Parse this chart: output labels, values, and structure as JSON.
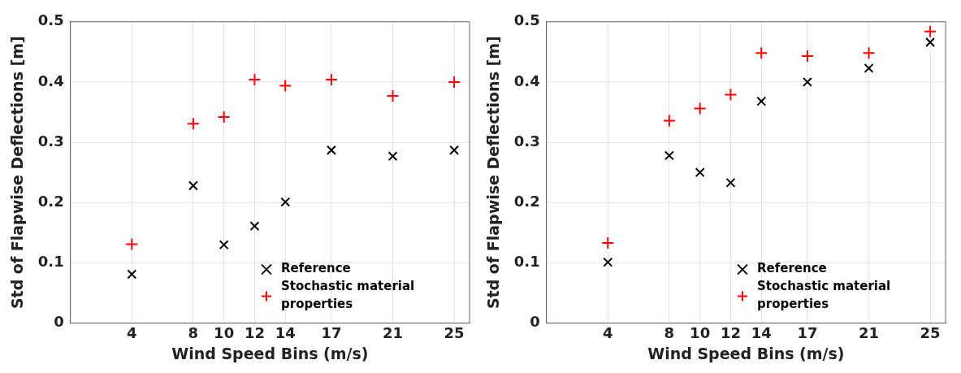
{
  "chart_data": [
    {
      "type": "scatter",
      "xlabel": "Wind Speed Bins (m/s)",
      "ylabel": "Std of Flapwise Deflections [m]",
      "xlim": [
        0,
        26
      ],
      "xticks": [
        4,
        8,
        10,
        12,
        14,
        17,
        21,
        25
      ],
      "ylim": [
        0,
        0.5
      ],
      "yticks": [
        0,
        0.1,
        0.2,
        0.3,
        0.4,
        0.5
      ],
      "grid": true,
      "legend": "bottom right",
      "series": [
        {
          "name": "Reference",
          "color": "#000000",
          "marker": "x",
          "x": [
            4,
            8,
            10,
            12,
            14,
            17,
            21,
            25
          ],
          "values": [
            0.081,
            0.228,
            0.13,
            0.161,
            0.201,
            0.287,
            0.277,
            0.287
          ]
        },
        {
          "name": "Stochastic material properties",
          "color": "#ff0000",
          "marker": "cross",
          "x": [
            4,
            8,
            10,
            12,
            14,
            17,
            21,
            25
          ],
          "values": [
            0.131,
            0.331,
            0.342,
            0.404,
            0.394,
            0.404,
            0.377,
            0.4
          ]
        }
      ]
    },
    {
      "type": "scatter",
      "xlabel": "Wind Speed Bins (m/s)",
      "ylabel": "Std of Flapwise Deflections [m]",
      "xlim": [
        0,
        26
      ],
      "xticks": [
        4,
        8,
        10,
        12,
        14,
        17,
        21,
        25
      ],
      "ylim": [
        0,
        0.5
      ],
      "yticks": [
        0,
        0.1,
        0.2,
        0.3,
        0.4,
        0.5
      ],
      "grid": true,
      "legend": "bottom right",
      "series": [
        {
          "name": "Reference",
          "color": "#000000",
          "marker": "x",
          "x": [
            4,
            8,
            10,
            12,
            14,
            17,
            21,
            25
          ],
          "values": [
            0.101,
            0.278,
            0.25,
            0.233,
            0.368,
            0.4,
            0.423,
            0.466
          ]
        },
        {
          "name": "Stochastic material properties",
          "color": "#ff0000",
          "marker": "cross",
          "x": [
            4,
            8,
            10,
            12,
            14,
            17,
            21,
            25
          ],
          "values": [
            0.133,
            0.336,
            0.356,
            0.379,
            0.448,
            0.443,
            0.448,
            0.484
          ]
        }
      ]
    }
  ]
}
